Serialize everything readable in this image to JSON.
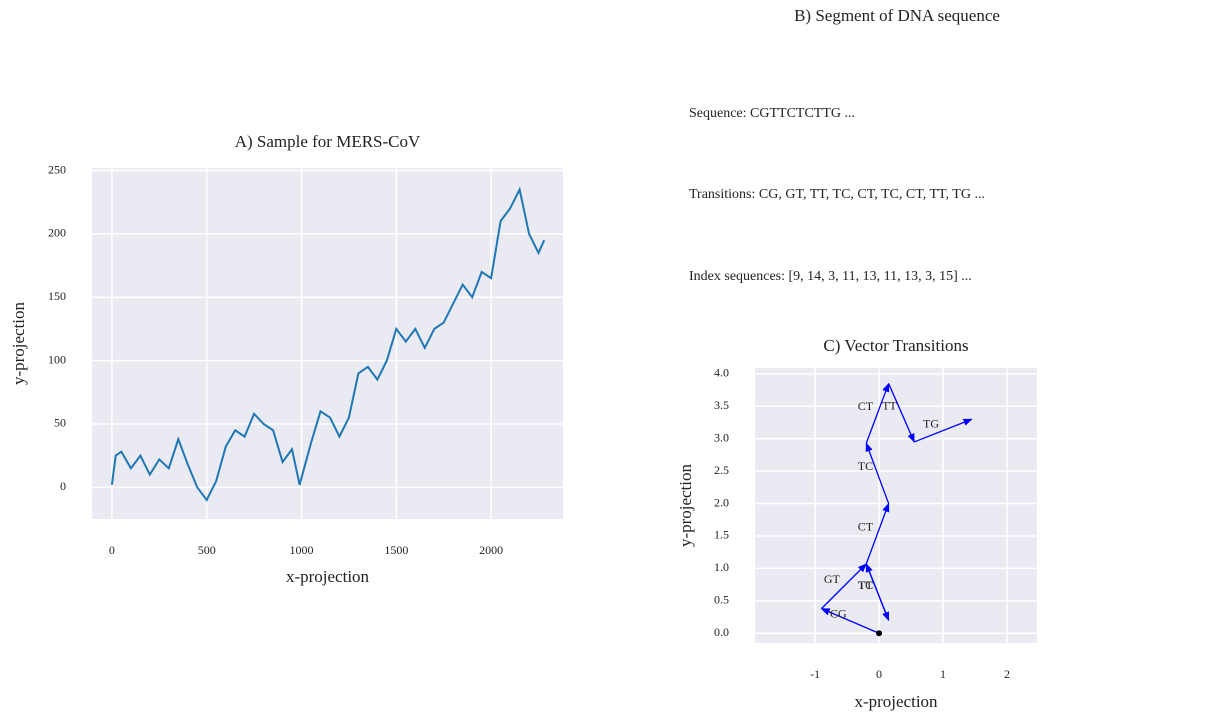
{
  "chart_data": [
    {
      "type": "line",
      "title": "A) Sample for MERS-CoV",
      "x_label": "x-projection",
      "y_label": "y-projection",
      "color": "#1f77b4",
      "grid": true,
      "x": [
        0,
        20,
        50,
        100,
        150,
        200,
        250,
        300,
        350,
        400,
        450,
        500,
        550,
        600,
        650,
        700,
        750,
        800,
        850,
        900,
        950,
        990,
        1050,
        1100,
        1150,
        1200,
        1250,
        1300,
        1350,
        1400,
        1450,
        1500,
        1550,
        1600,
        1650,
        1700,
        1750,
        1800,
        1850,
        1900,
        1950,
        2000,
        2050,
        2100,
        2150,
        2200,
        2250,
        2280
      ],
      "values": [
        2,
        25,
        28,
        15,
        25,
        10,
        22,
        15,
        38,
        18,
        0,
        -10,
        5,
        32,
        45,
        40,
        58,
        50,
        45,
        20,
        30,
        2,
        35,
        60,
        55,
        40,
        55,
        90,
        95,
        85,
        100,
        125,
        115,
        125,
        110,
        125,
        130,
        145,
        160,
        150,
        170,
        165,
        210,
        220,
        235,
        200,
        185,
        195
      ],
      "xlim": [
        -105,
        2379
      ],
      "ylim": [
        -25,
        252
      ],
      "xticks": [
        0,
        500,
        1000,
        1500,
        2000
      ],
      "yticks": [
        0,
        50,
        100,
        150,
        200,
        250
      ]
    },
    {
      "type": "vector",
      "title": "C) Vector Transitions",
      "x_label": "x-projection",
      "y_label": "y-projection",
      "color": "#0000ff",
      "start_color": "#000000",
      "grid": true,
      "x": [
        0,
        -0.9,
        -0.2,
        0.15,
        -0.2,
        0.15,
        -0.2,
        0.15,
        0.55,
        1.45
      ],
      "values": [
        0,
        0.38,
        1.07,
        0.2,
        1.07,
        2.0,
        2.93,
        3.85,
        2.95,
        3.3
      ],
      "segment_labels": [
        "CG",
        "GT",
        "TT",
        "TC",
        "CT",
        "TC",
        "CT",
        "TT",
        "TG"
      ],
      "xlim": [
        -1.94,
        2.47
      ],
      "ylim": [
        -0.15,
        4.09
      ],
      "xticks": [
        -1,
        0,
        1,
        2
      ],
      "yticks": [
        {
          "value": 0,
          "label": "0.0"
        },
        0.5,
        {
          "value": 1,
          "label": "1.0"
        },
        1.5,
        {
          "value": 2,
          "label": "2.0"
        },
        2.5,
        {
          "value": 3,
          "label": "3.0"
        },
        3.5,
        {
          "value": 4,
          "label": "4.0"
        }
      ]
    }
  ],
  "panel_b": {
    "title": "B) Segment of DNA sequence",
    "sequence": "Sequence: CGTTCTCTTG ...",
    "transitions": "Transitions: CG, GT, TT, TC, CT, TC, CT, TT, TG ...",
    "index_sequences": "Index sequences: [9, 14, 3, 11, 13, 11, 13, 3, 15] ..."
  }
}
